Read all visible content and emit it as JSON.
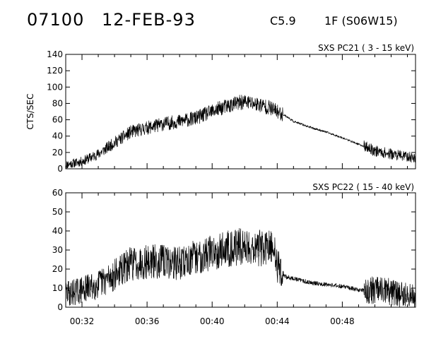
{
  "header": {
    "event_id": "07100",
    "date": "12-FEB-93",
    "goes_class": "C5.9",
    "flare": "1F (S06W15)"
  },
  "chart_data": [
    {
      "type": "line",
      "title": "SXS PC21  (  3 - 15 keV)",
      "ylabel": "CTS/SEC",
      "xlabel": "",
      "x_range": [
        "00:31:00",
        "00:52:30"
      ],
      "ylim": [
        0,
        140
      ],
      "yticks": [
        0,
        20,
        40,
        60,
        80,
        100,
        120,
        140
      ],
      "series": [
        {
          "x": [
            "00:31:00",
            "00:32:00",
            "00:33:00",
            "00:34:00",
            "00:35:00",
            "00:36:00",
            "00:37:00",
            "00:38:00",
            "00:39:00",
            "00:40:00",
            "00:40:30",
            "00:41:00",
            "00:41:30",
            "00:42:00",
            "00:42:30",
            "00:43:00",
            "00:43:30",
            "00:44:00",
            "00:44:30",
            "00:45:00",
            "00:46:00",
            "00:47:00",
            "00:48:00",
            "00:49:00",
            "00:50:00",
            "00:51:00",
            "00:52:00",
            "00:52:30"
          ],
          "values": [
            5,
            9,
            18,
            32,
            45,
            50,
            55,
            58,
            62,
            70,
            74,
            77,
            80,
            82,
            80,
            78,
            75,
            70,
            65,
            58,
            51,
            45,
            38,
            30,
            22,
            18,
            15,
            13
          ]
        }
      ]
    },
    {
      "type": "line",
      "title": "SXS PC22  ( 15 - 40 keV)",
      "ylabel": "",
      "xlabel": "",
      "x_range": [
        "00:31:00",
        "00:52:30"
      ],
      "ylim": [
        0,
        60
      ],
      "yticks": [
        0,
        10,
        20,
        30,
        40,
        50,
        60
      ],
      "xticks": [
        "00:32",
        "00:36",
        "00:40",
        "00:44",
        "00:48"
      ],
      "series": [
        {
          "x": [
            "00:31:00",
            "00:32:00",
            "00:33:00",
            "00:34:00",
            "00:35:00",
            "00:36:00",
            "00:37:00",
            "00:38:00",
            "00:39:00",
            "00:40:00",
            "00:41:00",
            "00:42:00",
            "00:43:00",
            "00:43:50",
            "00:44:00",
            "00:44:30",
            "00:45:00",
            "00:46:00",
            "00:47:00",
            "00:48:00",
            "00:49:00",
            "00:50:00",
            "00:51:00",
            "00:52:00",
            "00:52:30"
          ],
          "values": [
            7,
            9,
            12,
            17,
            23,
            24,
            24,
            23,
            26,
            29,
            31,
            32,
            31,
            30,
            22,
            16,
            15,
            13,
            12,
            11,
            9,
            9,
            8,
            6,
            5
          ]
        }
      ]
    }
  ]
}
